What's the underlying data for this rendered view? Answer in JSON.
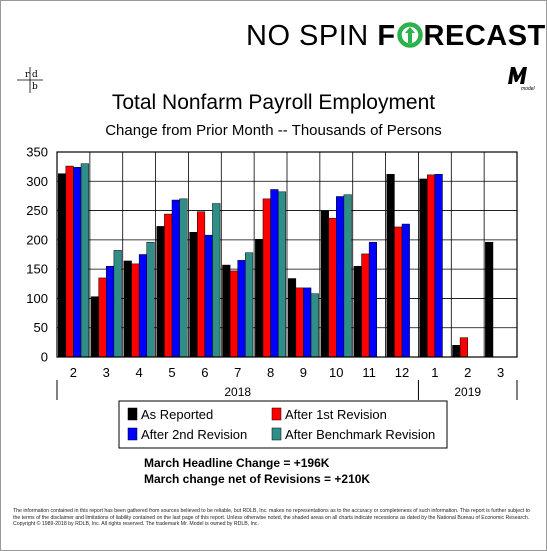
{
  "brand": {
    "part1": "NO SPIN ",
    "part2": "F",
    "part3": "RECAST",
    "model_mark": "model",
    "rdb_mark": "rdb"
  },
  "colors": {
    "reported": "#000000",
    "rev1": "#ff0000",
    "rev2": "#0000ff",
    "bench": "#2f8f88",
    "brand_green": "#2bb24c"
  },
  "chart_data": {
    "type": "bar",
    "title": "Total Nonfarm Payroll Employment",
    "subtitle": "Change from Prior Month -- Thousands of Persons",
    "categories": [
      "2",
      "3",
      "4",
      "5",
      "6",
      "7",
      "8",
      "9",
      "10",
      "11",
      "12",
      "1",
      "2",
      "3"
    ],
    "year_labels": [
      "2018",
      "2019"
    ],
    "ylim": [
      0,
      350
    ],
    "yticks": [
      0,
      50,
      100,
      150,
      200,
      250,
      300,
      350
    ],
    "series": [
      {
        "name": "As Reported",
        "values": [
          313,
          103,
          164,
          223,
          213,
          157,
          201,
          134,
          250,
          155,
          312,
          304,
          20,
          196
        ]
      },
      {
        "name": "After 1st Revision",
        "values": [
          326,
          135,
          159,
          244,
          248,
          147,
          270,
          118,
          237,
          176,
          222,
          311,
          33,
          null
        ]
      },
      {
        "name": "After 2nd Revision",
        "values": [
          324,
          155,
          175,
          268,
          208,
          165,
          286,
          118,
          274,
          196,
          227,
          312,
          null,
          null
        ]
      },
      {
        "name": "After Benchmark Revision",
        "values": [
          330,
          182,
          196,
          270,
          262,
          178,
          282,
          108,
          277,
          null,
          null,
          null,
          null,
          null
        ]
      }
    ],
    "grid": true,
    "legend": "bottom"
  },
  "notes": {
    "headline": "March Headline Change =  +196K",
    "net": "March change net of Revisions = +210K"
  },
  "disclaimer": "The information contained in this report has been gathered from sources believed to be reliable, but RDLB, Inc. makes no representations as to the accuracy or completeness of such information. This report is further subject to the terms of the disclaimer and limitations of liability contained on the last page of this report. Unless otherwise noted, the shaded areas on all charts indicate recessions as dated by the National Bureau of Economic Research. Copyright © 1989-2018 by RDLB, Inc. All rights reserved. The trademark Mr. Model is owned by RDLB, Inc."
}
